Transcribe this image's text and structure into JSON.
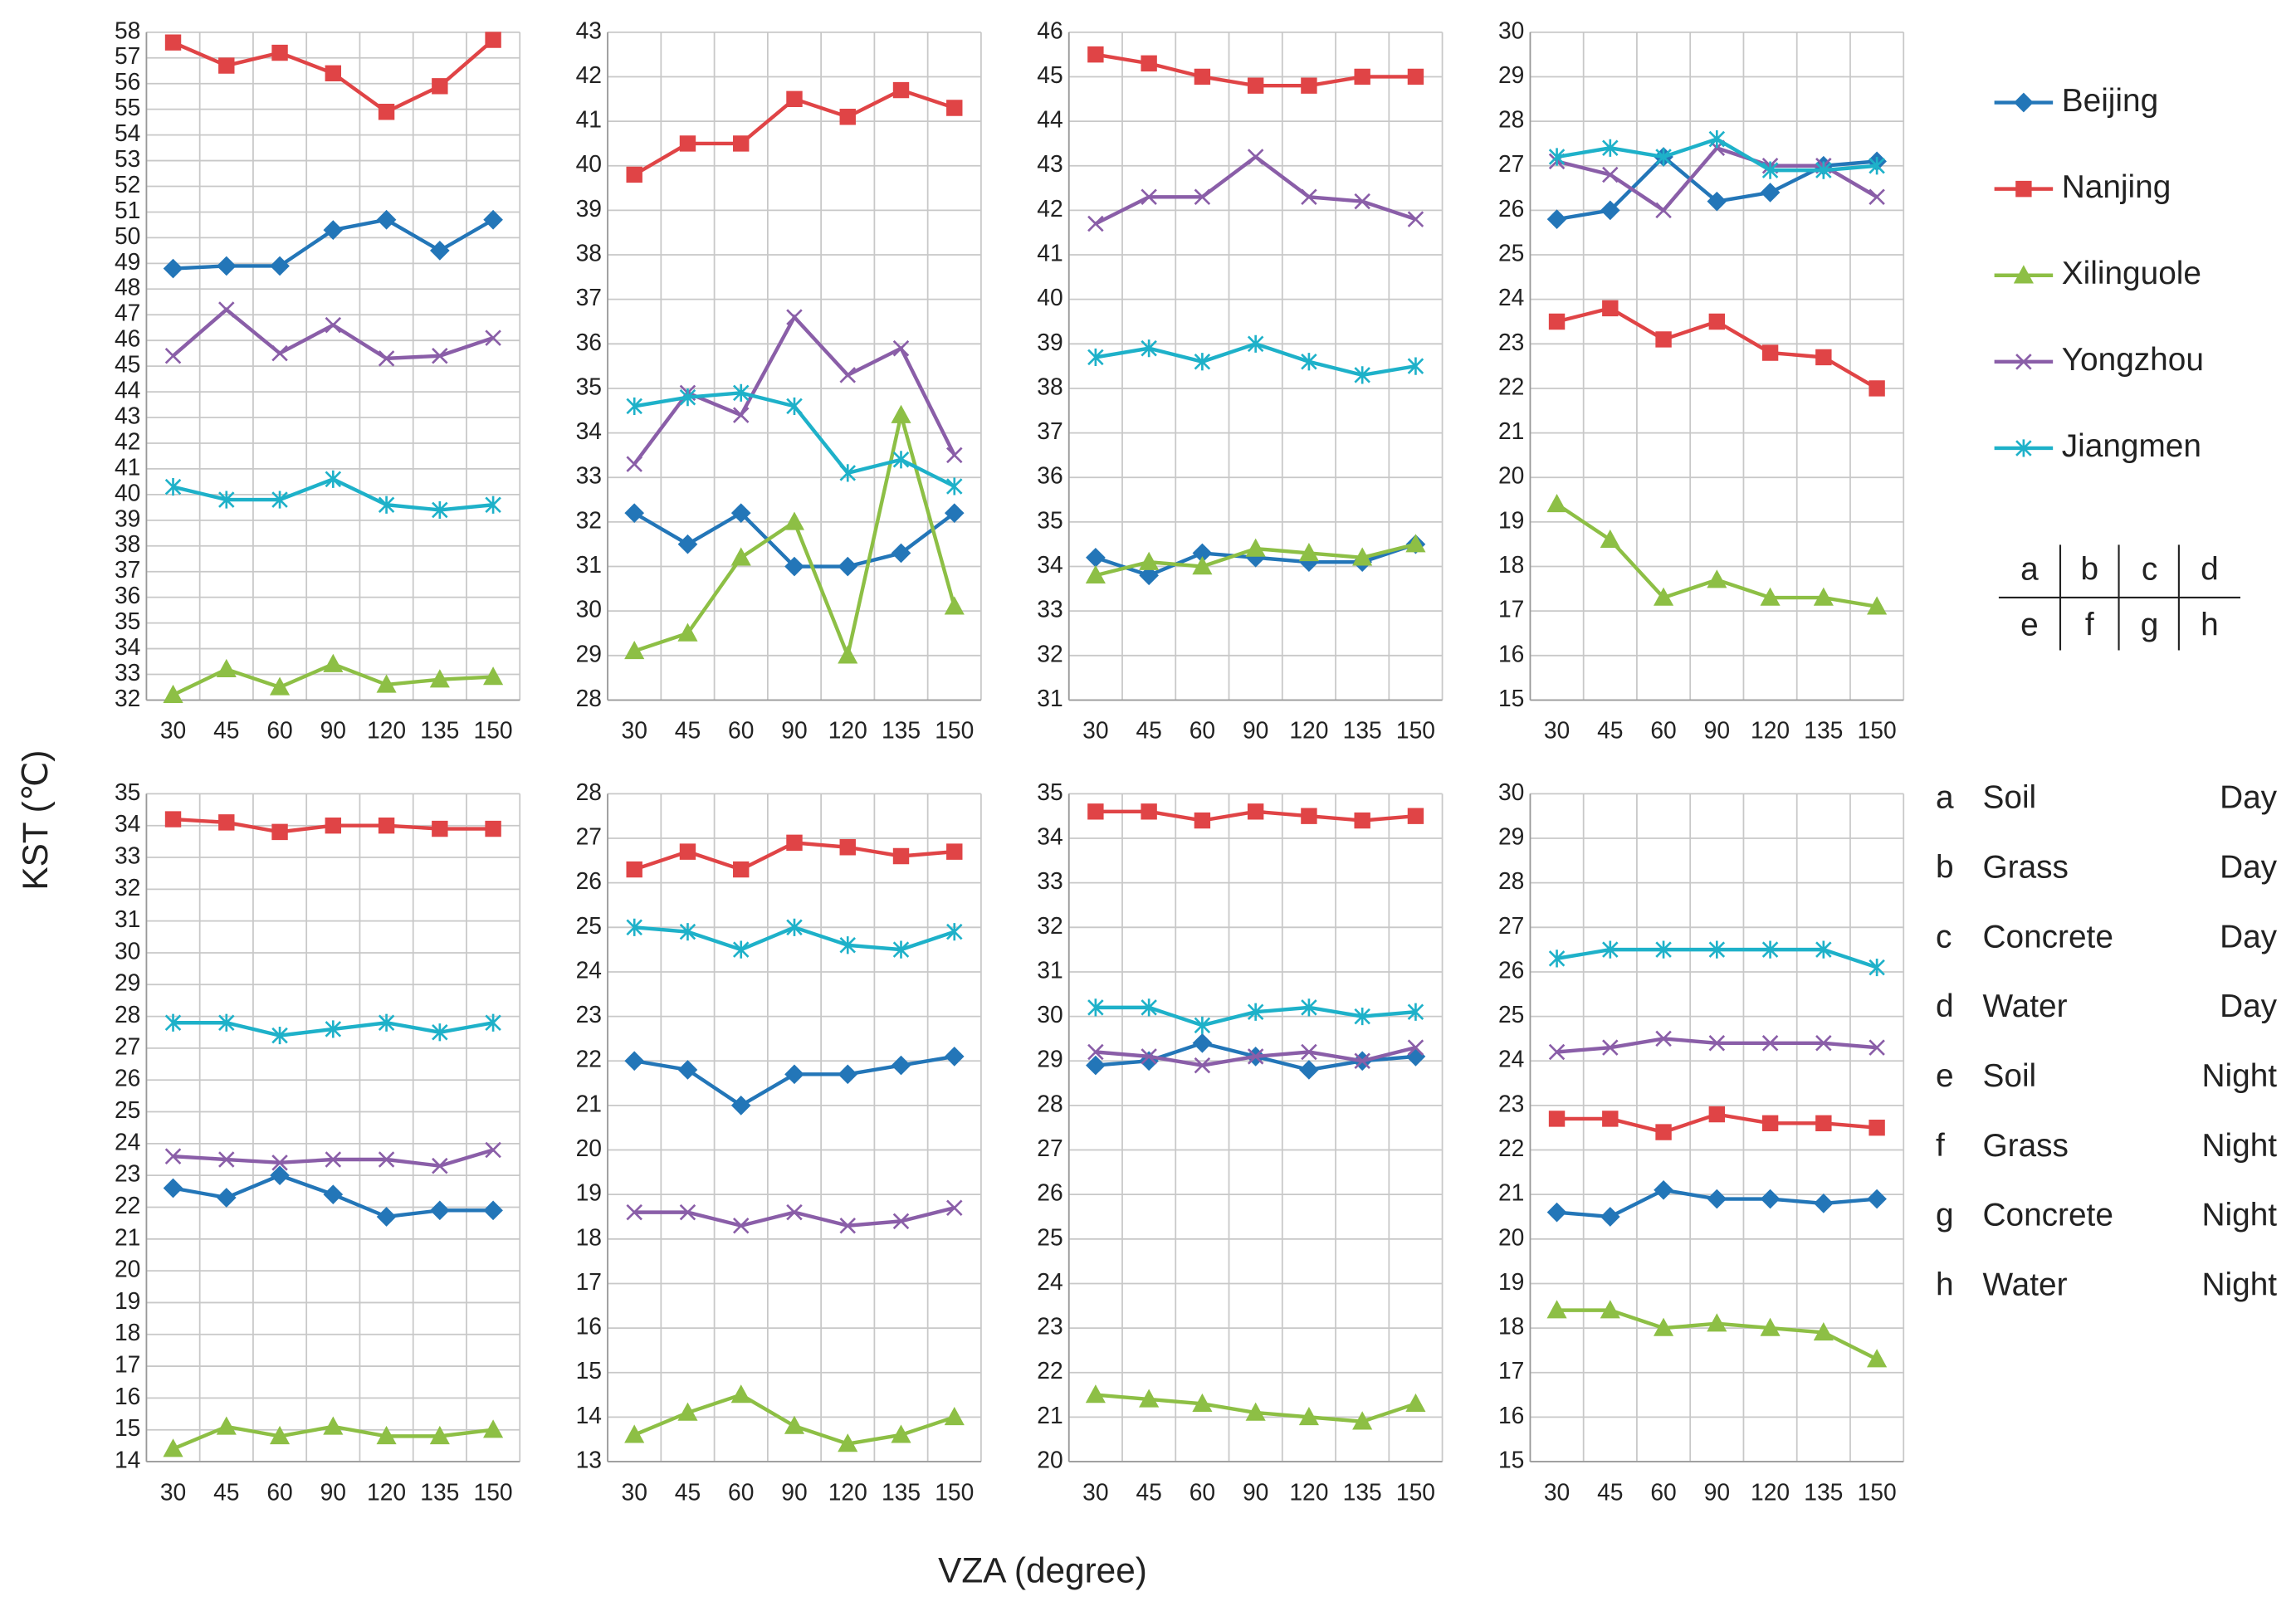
{
  "y_label": "KST (℃)",
  "x_label": "VZA (degree)",
  "key_table": [
    [
      "a",
      "b",
      "c",
      "d"
    ],
    [
      "e",
      "f",
      "g",
      "h"
    ]
  ],
  "panel_key": [
    {
      "letter": "a",
      "surface": "Soil",
      "time": "Day"
    },
    {
      "letter": "b",
      "surface": "Grass",
      "time": "Day"
    },
    {
      "letter": "c",
      "surface": "Concrete",
      "time": "Day"
    },
    {
      "letter": "d",
      "surface": "Water",
      "time": "Day"
    },
    {
      "letter": "e",
      "surface": "Soil",
      "time": "Night"
    },
    {
      "letter": "f",
      "surface": "Grass",
      "time": "Night"
    },
    {
      "letter": "g",
      "surface": "Concrete",
      "time": "Night"
    },
    {
      "letter": "h",
      "surface": "Water",
      "time": "Night"
    }
  ],
  "chart_data": [
    {
      "type": "line",
      "categories": [
        "30",
        "45",
        "60",
        "90",
        "120",
        "135",
        "150"
      ],
      "ylim": [
        32,
        58
      ],
      "yticks": [
        32,
        33,
        34,
        35,
        36,
        37,
        38,
        39,
        40,
        41,
        42,
        43,
        44,
        45,
        46,
        47,
        48,
        49,
        50,
        51,
        52,
        53,
        54,
        55,
        56,
        57,
        58
      ],
      "grid": true,
      "series": [
        {
          "name": "Beijing",
          "color": "#2376b8",
          "marker": "diamond",
          "values": [
            48.8,
            48.9,
            48.9,
            50.3,
            50.7,
            49.5,
            50.7
          ]
        },
        {
          "name": "Nanjing",
          "color": "#e04446",
          "marker": "square",
          "values": [
            57.6,
            56.7,
            57.2,
            56.4,
            54.9,
            55.9,
            57.7
          ]
        },
        {
          "name": "Xilinguole",
          "color": "#8dbf45",
          "marker": "triangle",
          "values": [
            32.2,
            33.2,
            32.5,
            33.4,
            32.6,
            32.8,
            32.9
          ]
        },
        {
          "name": "Yongzhou",
          "color": "#8a5ea8",
          "marker": "x",
          "values": [
            45.4,
            47.2,
            45.5,
            46.6,
            45.3,
            45.4,
            46.1
          ]
        },
        {
          "name": "Jiangmen",
          "color": "#1eb1c9",
          "marker": "asterisk",
          "values": [
            40.3,
            39.8,
            39.8,
            40.6,
            39.6,
            39.4,
            39.6
          ]
        }
      ]
    },
    {
      "type": "line",
      "categories": [
        "30",
        "45",
        "60",
        "90",
        "120",
        "135",
        "150"
      ],
      "ylim": [
        28,
        43
      ],
      "yticks": [
        28,
        29,
        30,
        31,
        32,
        33,
        34,
        35,
        36,
        37,
        38,
        39,
        40,
        41,
        42,
        43
      ],
      "grid": true,
      "series": [
        {
          "name": "Beijing",
          "color": "#2376b8",
          "marker": "diamond",
          "values": [
            32.2,
            31.5,
            32.2,
            31.0,
            31.0,
            31.3,
            32.2
          ]
        },
        {
          "name": "Nanjing",
          "color": "#e04446",
          "marker": "square",
          "values": [
            39.8,
            40.5,
            40.5,
            41.5,
            41.1,
            41.7,
            41.3
          ]
        },
        {
          "name": "Xilinguole",
          "color": "#8dbf45",
          "marker": "triangle",
          "values": [
            29.1,
            29.5,
            31.2,
            32.0,
            29.0,
            34.4,
            30.1
          ]
        },
        {
          "name": "Yongzhou",
          "color": "#8a5ea8",
          "marker": "x",
          "values": [
            33.3,
            34.9,
            34.4,
            36.6,
            35.3,
            35.9,
            33.5
          ]
        },
        {
          "name": "Jiangmen",
          "color": "#1eb1c9",
          "marker": "asterisk",
          "values": [
            34.6,
            34.8,
            34.9,
            34.6,
            33.1,
            33.4,
            32.8
          ]
        }
      ]
    },
    {
      "type": "line",
      "categories": [
        "30",
        "45",
        "60",
        "90",
        "120",
        "135",
        "150"
      ],
      "ylim": [
        31,
        46
      ],
      "yticks": [
        31,
        32,
        33,
        34,
        35,
        36,
        37,
        38,
        39,
        40,
        41,
        42,
        43,
        44,
        45,
        46
      ],
      "grid": true,
      "series": [
        {
          "name": "Beijing",
          "color": "#2376b8",
          "marker": "diamond",
          "values": [
            34.2,
            33.8,
            34.3,
            34.2,
            34.1,
            34.1,
            34.5
          ]
        },
        {
          "name": "Nanjing",
          "color": "#e04446",
          "marker": "square",
          "values": [
            45.5,
            45.3,
            45.0,
            44.8,
            44.8,
            45.0,
            45.0
          ]
        },
        {
          "name": "Xilinguole",
          "color": "#8dbf45",
          "marker": "triangle",
          "values": [
            33.8,
            34.1,
            34.0,
            34.4,
            34.3,
            34.2,
            34.5
          ]
        },
        {
          "name": "Yongzhou",
          "color": "#8a5ea8",
          "marker": "x",
          "values": [
            41.7,
            42.3,
            42.3,
            43.2,
            42.3,
            42.2,
            41.8
          ]
        },
        {
          "name": "Jiangmen",
          "color": "#1eb1c9",
          "marker": "asterisk",
          "values": [
            38.7,
            38.9,
            38.6,
            39.0,
            38.6,
            38.3,
            38.5
          ]
        }
      ]
    },
    {
      "type": "line",
      "categories": [
        "30",
        "45",
        "60",
        "90",
        "120",
        "135",
        "150"
      ],
      "ylim": [
        15,
        30
      ],
      "yticks": [
        15,
        16,
        17,
        18,
        19,
        20,
        21,
        22,
        23,
        24,
        25,
        26,
        27,
        28,
        29,
        30
      ],
      "grid": true,
      "series": [
        {
          "name": "Beijing",
          "color": "#2376b8",
          "marker": "diamond",
          "values": [
            25.8,
            26.0,
            27.2,
            26.2,
            26.4,
            27.0,
            27.1
          ]
        },
        {
          "name": "Nanjing",
          "color": "#e04446",
          "marker": "square",
          "values": [
            23.5,
            23.8,
            23.1,
            23.5,
            22.8,
            22.7,
            22.0
          ]
        },
        {
          "name": "Xilinguole",
          "color": "#8dbf45",
          "marker": "triangle",
          "values": [
            19.4,
            18.6,
            17.3,
            17.7,
            17.3,
            17.3,
            17.1
          ]
        },
        {
          "name": "Yongzhou",
          "color": "#8a5ea8",
          "marker": "x",
          "values": [
            27.1,
            26.8,
            26.0,
            27.4,
            27.0,
            27.0,
            26.3
          ]
        },
        {
          "name": "Jiangmen",
          "color": "#1eb1c9",
          "marker": "asterisk",
          "values": [
            27.2,
            27.4,
            27.2,
            27.6,
            26.9,
            26.9,
            27.0
          ]
        }
      ]
    },
    {
      "type": "line",
      "categories": [
        "30",
        "45",
        "60",
        "90",
        "120",
        "135",
        "150"
      ],
      "ylim": [
        14,
        35
      ],
      "yticks": [
        14,
        15,
        16,
        17,
        18,
        19,
        20,
        21,
        22,
        23,
        24,
        25,
        26,
        27,
        28,
        29,
        30,
        31,
        32,
        33,
        34,
        35
      ],
      "grid": true,
      "series": [
        {
          "name": "Beijing",
          "color": "#2376b8",
          "marker": "diamond",
          "values": [
            22.6,
            22.3,
            23.0,
            22.4,
            21.7,
            21.9,
            21.9
          ]
        },
        {
          "name": "Nanjing",
          "color": "#e04446",
          "marker": "square",
          "values": [
            34.2,
            34.1,
            33.8,
            34.0,
            34.0,
            33.9,
            33.9
          ]
        },
        {
          "name": "Xilinguole",
          "color": "#8dbf45",
          "marker": "triangle",
          "values": [
            14.4,
            15.1,
            14.8,
            15.1,
            14.8,
            14.8,
            15.0
          ]
        },
        {
          "name": "Yongzhou",
          "color": "#8a5ea8",
          "marker": "x",
          "values": [
            23.6,
            23.5,
            23.4,
            23.5,
            23.5,
            23.3,
            23.8
          ]
        },
        {
          "name": "Jiangmen",
          "color": "#1eb1c9",
          "marker": "asterisk",
          "values": [
            27.8,
            27.8,
            27.4,
            27.6,
            27.8,
            27.5,
            27.8
          ]
        }
      ]
    },
    {
      "type": "line",
      "categories": [
        "30",
        "45",
        "60",
        "90",
        "120",
        "135",
        "150"
      ],
      "ylim": [
        13,
        28
      ],
      "yticks": [
        13,
        14,
        15,
        16,
        17,
        18,
        19,
        20,
        21,
        22,
        23,
        24,
        25,
        26,
        27,
        28
      ],
      "grid": true,
      "series": [
        {
          "name": "Beijing",
          "color": "#2376b8",
          "marker": "diamond",
          "values": [
            22.0,
            21.8,
            21.0,
            21.7,
            21.7,
            21.9,
            22.1
          ]
        },
        {
          "name": "Nanjing",
          "color": "#e04446",
          "marker": "square",
          "values": [
            26.3,
            26.7,
            26.3,
            26.9,
            26.8,
            26.6,
            26.7
          ]
        },
        {
          "name": "Xilinguole",
          "color": "#8dbf45",
          "marker": "triangle",
          "values": [
            13.6,
            14.1,
            14.5,
            13.8,
            13.4,
            13.6,
            14.0
          ]
        },
        {
          "name": "Yongzhou",
          "color": "#8a5ea8",
          "marker": "x",
          "values": [
            18.6,
            18.6,
            18.3,
            18.6,
            18.3,
            18.4,
            18.7
          ]
        },
        {
          "name": "Jiangmen",
          "color": "#1eb1c9",
          "marker": "asterisk",
          "values": [
            25.0,
            24.9,
            24.5,
            25.0,
            24.6,
            24.5,
            24.9
          ]
        }
      ]
    },
    {
      "type": "line",
      "categories": [
        "30",
        "45",
        "60",
        "90",
        "120",
        "135",
        "150"
      ],
      "ylim": [
        20,
        35
      ],
      "yticks": [
        20,
        21,
        22,
        23,
        24,
        25,
        26,
        27,
        28,
        29,
        30,
        31,
        32,
        33,
        34,
        35
      ],
      "grid": true,
      "series": [
        {
          "name": "Beijing",
          "color": "#2376b8",
          "marker": "diamond",
          "values": [
            28.9,
            29.0,
            29.4,
            29.1,
            28.8,
            29.0,
            29.1
          ]
        },
        {
          "name": "Nanjing",
          "color": "#e04446",
          "marker": "square",
          "values": [
            34.6,
            34.6,
            34.4,
            34.6,
            34.5,
            34.4,
            34.5
          ]
        },
        {
          "name": "Xilinguole",
          "color": "#8dbf45",
          "marker": "triangle",
          "values": [
            21.5,
            21.4,
            21.3,
            21.1,
            21.0,
            20.9,
            21.3
          ]
        },
        {
          "name": "Yongzhou",
          "color": "#8a5ea8",
          "marker": "x",
          "values": [
            29.2,
            29.1,
            28.9,
            29.1,
            29.2,
            29.0,
            29.3
          ]
        },
        {
          "name": "Jiangmen",
          "color": "#1eb1c9",
          "marker": "asterisk",
          "values": [
            30.2,
            30.2,
            29.8,
            30.1,
            30.2,
            30.0,
            30.1
          ]
        }
      ]
    },
    {
      "type": "line",
      "categories": [
        "30",
        "45",
        "60",
        "90",
        "120",
        "135",
        "150"
      ],
      "ylim": [
        15,
        30
      ],
      "yticks": [
        15,
        16,
        17,
        18,
        19,
        20,
        21,
        22,
        23,
        24,
        25,
        26,
        27,
        28,
        29,
        30
      ],
      "grid": true,
      "series": [
        {
          "name": "Beijing",
          "color": "#2376b8",
          "marker": "diamond",
          "values": [
            20.6,
            20.5,
            21.1,
            20.9,
            20.9,
            20.8,
            20.9
          ]
        },
        {
          "name": "Nanjing",
          "color": "#e04446",
          "marker": "square",
          "values": [
            22.7,
            22.7,
            22.4,
            22.8,
            22.6,
            22.6,
            22.5
          ]
        },
        {
          "name": "Xilinguole",
          "color": "#8dbf45",
          "marker": "triangle",
          "values": [
            18.4,
            18.4,
            18.0,
            18.1,
            18.0,
            17.9,
            17.3
          ]
        },
        {
          "name": "Yongzhou",
          "color": "#8a5ea8",
          "marker": "x",
          "values": [
            24.2,
            24.3,
            24.5,
            24.4,
            24.4,
            24.4,
            24.3
          ]
        },
        {
          "name": "Jiangmen",
          "color": "#1eb1c9",
          "marker": "asterisk",
          "values": [
            26.3,
            26.5,
            26.5,
            26.5,
            26.5,
            26.5,
            26.1
          ]
        }
      ]
    }
  ]
}
